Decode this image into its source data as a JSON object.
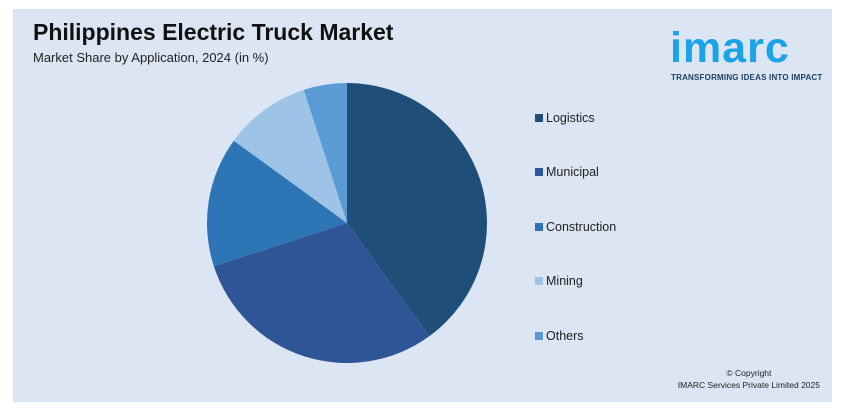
{
  "header": {
    "title": "Philippines Electric Truck Market",
    "subtitle": "Market Share by Application, 2024 (in %)"
  },
  "logo": {
    "wordmark": "imarc",
    "tagline": "TRANSFORMING IDEAS INTO IMPACT"
  },
  "footer": {
    "copyright_line1": "© Copyright",
    "copyright_line2": "IMARC Services Private Limited 2025"
  },
  "chart_data": {
    "type": "pie",
    "title": "Philippines Electric Truck Market",
    "subtitle": "Market Share by Application, 2024 (in %)",
    "categories": [
      "Logistics",
      "Municipal",
      "Construction",
      "Mining",
      "Others"
    ],
    "values": [
      40,
      30,
      15,
      10,
      5
    ],
    "colors": [
      "#1f4e79",
      "#2f5597",
      "#2e75b6",
      "#9dc3e6",
      "#5b9bd5"
    ],
    "legend_position": "right",
    "start_angle": "top, clockwise"
  }
}
